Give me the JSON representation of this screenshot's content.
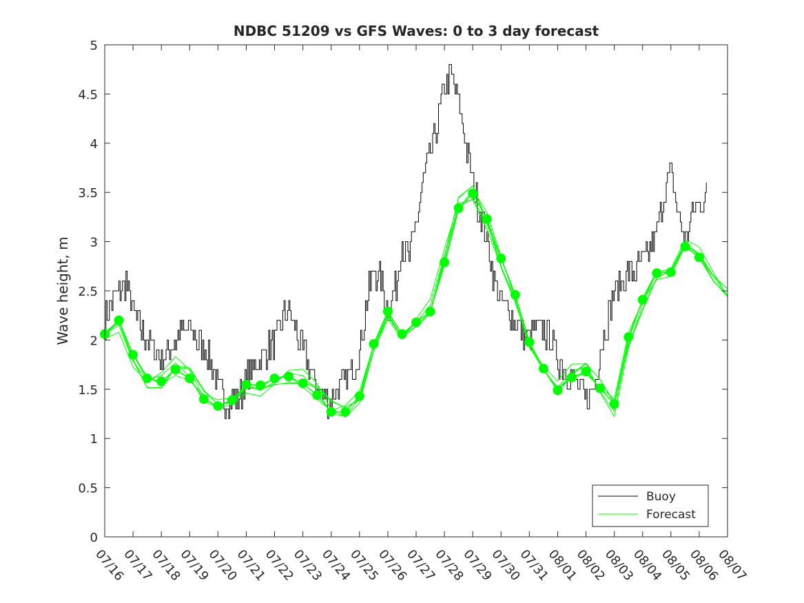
{
  "chart_data": {
    "type": "line",
    "title": "NDBC 51209 vs GFS Waves: 0 to 3 day forecast",
    "xlabel": "",
    "ylabel": "Wave height, m",
    "ylim": [
      0,
      5
    ],
    "yticks": [
      "0",
      "0.5",
      "1",
      "1.5",
      "2",
      "2.5",
      "3",
      "3.5",
      "4",
      "4.5",
      "5"
    ],
    "xticks": [
      "07/16",
      "07/17",
      "07/18",
      "07/19",
      "07/20",
      "07/21",
      "07/22",
      "07/23",
      "07/24",
      "07/25",
      "07/26",
      "07/27",
      "07/28",
      "07/29",
      "07/30",
      "07/31",
      "08/01",
      "08/02",
      "08/03",
      "08/04",
      "08/05",
      "08/06",
      "08/07"
    ],
    "xlim_days": [
      0,
      22
    ],
    "legend": {
      "position": "bottom-right",
      "entries": [
        "Buoy",
        "Forecast"
      ]
    },
    "colors": {
      "buoy": "#000000",
      "forecast": "#00ff00"
    },
    "series": [
      {
        "name": "Buoy",
        "x_days": [
          0,
          0.25,
          0.5,
          0.75,
          1,
          1.25,
          1.5,
          1.75,
          2,
          2.25,
          2.5,
          2.75,
          3,
          3.25,
          3.5,
          3.75,
          4,
          4.25,
          4.5,
          4.75,
          5,
          5.25,
          5.5,
          5.75,
          6,
          6.25,
          6.5,
          6.75,
          7,
          7.25,
          7.5,
          7.75,
          8,
          8.25,
          8.5,
          8.75,
          9,
          9.25,
          9.5,
          9.75,
          10,
          10.25,
          10.5,
          10.75,
          11,
          11.25,
          11.5,
          11.75,
          12,
          12.25,
          12.5,
          12.75,
          13,
          13.25,
          13.5,
          13.75,
          14,
          14.25,
          14.5,
          14.75,
          15,
          15.25,
          15.5,
          15.75,
          16,
          16.25,
          16.5,
          16.75,
          17,
          17.25,
          17.5,
          17.75,
          18,
          18.25,
          18.5,
          18.75,
          19,
          19.25,
          19.5,
          19.75,
          20,
          20.25,
          20.5,
          20.75,
          21,
          21.25
        ],
        "values": [
          2.2,
          2.4,
          2.5,
          2.6,
          2.3,
          2.1,
          2.0,
          1.9,
          1.8,
          1.9,
          2.0,
          2.1,
          2.1,
          2.0,
          1.9,
          1.8,
          1.5,
          1.4,
          1.4,
          1.4,
          1.6,
          1.7,
          1.8,
          1.9,
          2.0,
          2.2,
          2.3,
          2.1,
          1.9,
          1.7,
          1.5,
          1.4,
          1.4,
          1.5,
          1.6,
          1.7,
          1.9,
          2.4,
          2.7,
          2.6,
          2.3,
          2.5,
          3.0,
          2.8,
          3.2,
          3.6,
          3.9,
          4.2,
          4.6,
          4.7,
          4.4,
          4.0,
          3.6,
          3.3,
          3.0,
          2.6,
          2.4,
          2.3,
          2.2,
          2.1,
          2.0,
          2.1,
          2.1,
          2.0,
          1.8,
          1.7,
          1.6,
          1.5,
          1.4,
          1.5,
          1.9,
          2.2,
          2.5,
          2.6,
          2.7,
          2.7,
          2.8,
          2.9,
          3.1,
          3.5,
          3.7,
          3.3,
          3.0,
          3.3,
          3.4,
          3.5
        ]
      },
      {
        "name": "Forecast",
        "x_days": [
          0,
          0.5,
          1,
          1.5,
          2,
          2.5,
          3,
          3.5,
          4,
          4.5,
          5,
          5.5,
          6,
          6.5,
          7,
          7.5,
          8,
          8.5,
          9,
          9.5,
          10,
          10.5,
          11,
          11.5,
          12,
          12.5,
          13,
          13.5,
          14,
          14.5,
          15,
          15.5,
          16,
          16.5,
          17,
          17.5,
          18,
          18.5,
          19,
          19.5,
          20,
          20.5,
          21,
          21.5,
          22
        ],
        "values": [
          2.06,
          2.2,
          1.85,
          1.61,
          1.58,
          1.7,
          1.61,
          1.4,
          1.33,
          1.39,
          1.55,
          1.54,
          1.61,
          1.63,
          1.56,
          1.44,
          1.27,
          1.27,
          1.43,
          1.96,
          2.29,
          2.06,
          2.18,
          2.29,
          2.79,
          3.34,
          3.49,
          3.23,
          2.83,
          2.46,
          1.98,
          1.71,
          1.49,
          1.62,
          1.68,
          1.51,
          1.35,
          2.03,
          2.41,
          2.68,
          2.69,
          2.95,
          2.84,
          2.6,
          2.45
        ]
      }
    ]
  }
}
